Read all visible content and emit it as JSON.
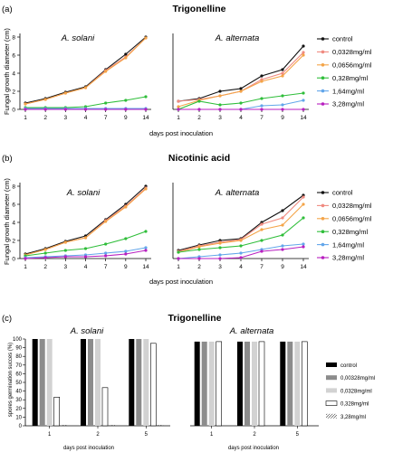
{
  "figure": {
    "panel_a": {
      "label": "(a)",
      "title": "Trigonelline",
      "ylabel": "Fungal growth diameter (cm)",
      "xlabel": "days post inoculation"
    },
    "panel_b": {
      "label": "(b)",
      "title": "Nicotinic acid",
      "ylabel": "Fungal growth diameter (cm)",
      "xlabel": "days post inoculation"
    },
    "panel_c": {
      "label": "(c)",
      "title": "Trigonelline",
      "ylabel": "spores germination succes (%)",
      "xlabel": "days post inoculation"
    },
    "organisms": {
      "solani": "A. solani",
      "alternata": "A. alternata"
    }
  },
  "colors": {
    "control": "#111111",
    "c00328": "#f08a80",
    "c00656": "#f4a448",
    "c0328": "#2fbe3a",
    "c164": "#62a6ea",
    "c328": "#b81fc0"
  },
  "chart_data": [
    {
      "type": "line",
      "panel": "a",
      "title": "Trigonelline",
      "subtitle": "A. solani",
      "xlabel": "days post inoculation",
      "ylabel": "Fungal growth diameter (cm)",
      "x": [
        "1",
        "2",
        "3",
        "4",
        "7",
        "9",
        "14"
      ],
      "ylim": [
        0,
        8
      ],
      "series": [
        {
          "name": "control",
          "values": [
            0.7,
            1.2,
            1.9,
            2.5,
            4.4,
            6.1,
            8.0
          ]
        },
        {
          "name": "0,0328mg/ml",
          "values": [
            0.6,
            1.1,
            1.8,
            2.4,
            4.3,
            5.8,
            7.9
          ]
        },
        {
          "name": "0,0656mg/ml",
          "values": [
            0.6,
            1.1,
            1.8,
            2.4,
            4.2,
            5.7,
            7.9
          ]
        },
        {
          "name": "0,328mg/ml",
          "values": [
            0.2,
            0.2,
            0.2,
            0.3,
            0.7,
            1.0,
            1.4
          ]
        },
        {
          "name": "1,64mg/ml",
          "values": [
            0.1,
            0.1,
            0.1,
            0.1,
            0.1,
            0.1,
            0.1
          ]
        },
        {
          "name": "3,28mg/ml",
          "values": [
            0.0,
            0.0,
            0.0,
            0.0,
            0.0,
            0.0,
            0.0
          ]
        }
      ]
    },
    {
      "type": "line",
      "panel": "a",
      "subtitle": "A. alternata",
      "x": [
        "1",
        "2",
        "3",
        "4",
        "7",
        "9",
        "14"
      ],
      "ylim": [
        0,
        8
      ],
      "series": [
        {
          "name": "control",
          "values": [
            0.9,
            1.2,
            2.0,
            2.3,
            3.7,
            4.4,
            7.0
          ]
        },
        {
          "name": "0,0328mg/ml",
          "values": [
            0.9,
            1.1,
            1.5,
            2.0,
            3.3,
            4.0,
            6.3
          ]
        },
        {
          "name": "0,0656mg/ml",
          "values": [
            0.3,
            1.0,
            1.5,
            2.0,
            3.1,
            3.7,
            6.0
          ]
        },
        {
          "name": "0,328mg/ml",
          "values": [
            0.0,
            0.9,
            0.5,
            0.7,
            1.2,
            1.5,
            1.8
          ]
        },
        {
          "name": "1,64mg/ml",
          "values": [
            0.0,
            0.0,
            0.0,
            0.0,
            0.4,
            0.5,
            1.0
          ]
        },
        {
          "name": "3,28mg/ml",
          "values": [
            0.0,
            0.0,
            0.0,
            0.0,
            0.0,
            0.0,
            0.0
          ]
        }
      ]
    },
    {
      "type": "line",
      "panel": "b",
      "title": "Nicotinic acid",
      "subtitle": "A. solani",
      "xlabel": "days post inoculation",
      "ylabel": "Fungal growth diameter (cm)",
      "x": [
        "1",
        "2",
        "3",
        "4",
        "7",
        "9",
        "14"
      ],
      "ylim": [
        0,
        8
      ],
      "series": [
        {
          "name": "control",
          "values": [
            0.5,
            1.1,
            1.9,
            2.5,
            4.3,
            6.0,
            8.0
          ]
        },
        {
          "name": "0,0328mg/ml",
          "values": [
            0.4,
            1.0,
            1.8,
            2.3,
            4.2,
            5.8,
            7.8
          ]
        },
        {
          "name": "0,0656mg/ml",
          "values": [
            0.4,
            1.0,
            1.8,
            2.3,
            4.1,
            5.7,
            7.7
          ]
        },
        {
          "name": "0,328mg/ml",
          "values": [
            0.3,
            0.6,
            0.9,
            1.1,
            1.6,
            2.2,
            3.0
          ]
        },
        {
          "name": "1,64mg/ml",
          "values": [
            0.1,
            0.2,
            0.3,
            0.4,
            0.6,
            0.8,
            1.2
          ]
        },
        {
          "name": "3,28mg/ml",
          "values": [
            0.0,
            0.1,
            0.2,
            0.2,
            0.3,
            0.5,
            0.9
          ]
        }
      ]
    },
    {
      "type": "line",
      "panel": "b",
      "subtitle": "A. alternata",
      "x": [
        "1",
        "2",
        "3",
        "4",
        "7",
        "9",
        "14"
      ],
      "ylim": [
        0,
        8
      ],
      "series": [
        {
          "name": "control",
          "values": [
            0.9,
            1.5,
            2.0,
            2.2,
            4.0,
            5.3,
            7.0
          ]
        },
        {
          "name": "0,0328mg/ml",
          "values": [
            0.8,
            1.4,
            1.8,
            2.1,
            3.8,
            4.5,
            6.8
          ]
        },
        {
          "name": "0,0656mg/ml",
          "values": [
            0.7,
            1.3,
            1.7,
            2.0,
            3.2,
            3.7,
            6.0
          ]
        },
        {
          "name": "0,328mg/ml",
          "values": [
            0.7,
            1.0,
            1.2,
            1.4,
            2.0,
            2.6,
            4.5
          ]
        },
        {
          "name": "1,64mg/ml",
          "values": [
            0.0,
            0.2,
            0.4,
            0.6,
            1.0,
            1.4,
            1.6
          ]
        },
        {
          "name": "3,28mg/ml",
          "values": [
            0.0,
            0.0,
            0.0,
            0.1,
            0.8,
            1.0,
            1.3
          ]
        }
      ]
    },
    {
      "type": "bar",
      "panel": "c",
      "title": "Trigonelline",
      "subtitle": "A. solani",
      "xlabel": "days post inoculation",
      "ylabel": "spores germination succes (%)",
      "categories": [
        "1",
        "2",
        "5"
      ],
      "ylim": [
        0,
        100
      ],
      "yticks": [
        0,
        10,
        20,
        30,
        40,
        50,
        60,
        70,
        80,
        90,
        100
      ],
      "series": [
        {
          "name": "control",
          "values": [
            100,
            100,
            100
          ]
        },
        {
          "name": "0,00328mg/ml",
          "values": [
            100,
            100,
            100
          ]
        },
        {
          "name": "0,0328mg/ml",
          "values": [
            100,
            100,
            100
          ]
        },
        {
          "name": "0,328mg/ml",
          "values": [
            33,
            44,
            95
          ]
        },
        {
          "name": "3,28mg/ml",
          "values": [
            1,
            1,
            1
          ]
        }
      ]
    },
    {
      "type": "bar",
      "panel": "c",
      "subtitle": "A. alternata",
      "categories": [
        "1",
        "2",
        "5"
      ],
      "ylim": [
        0,
        100
      ],
      "series": [
        {
          "name": "control",
          "values": [
            97,
            97,
            97
          ]
        },
        {
          "name": "0,00328mg/ml",
          "values": [
            97,
            97,
            97
          ]
        },
        {
          "name": "0,0328mg/ml",
          "values": [
            97,
            97,
            97
          ]
        },
        {
          "name": "0,328mg/ml",
          "values": [
            97,
            97,
            97
          ]
        },
        {
          "name": "3,28mg/ml",
          "values": [
            0,
            0,
            0
          ]
        }
      ]
    }
  ]
}
